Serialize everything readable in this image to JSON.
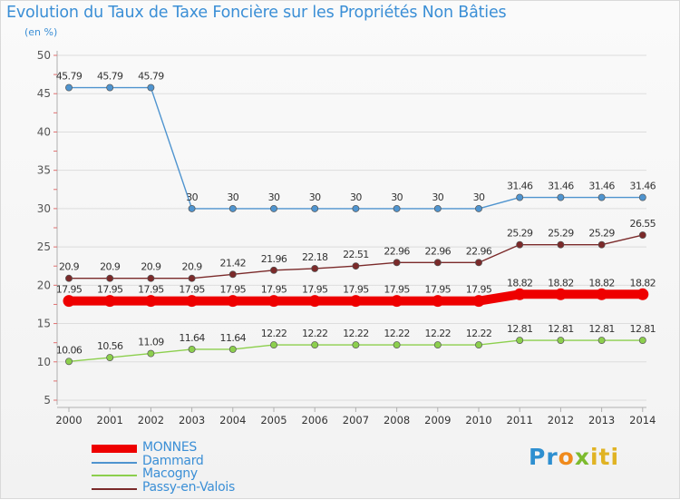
{
  "chart_data": {
    "type": "line",
    "title": "Evolution du Taux de Taxe Foncière sur les Propriétés Non Bâties",
    "unit_label": "(en %)",
    "xlabel": "",
    "ylabel": "",
    "ylim": [
      5,
      50
    ],
    "yticks": [
      5,
      10,
      15,
      20,
      25,
      30,
      35,
      40,
      45,
      50
    ],
    "categories": [
      "2000",
      "2001",
      "2002",
      "2003",
      "2004",
      "2005",
      "2006",
      "2007",
      "2008",
      "2009",
      "2010",
      "2011",
      "2012",
      "2013",
      "2014"
    ],
    "series": [
      {
        "name": "MONNES",
        "color": "#ee0000",
        "values": [
          17.95,
          17.95,
          17.95,
          17.95,
          17.95,
          17.95,
          17.95,
          17.95,
          17.95,
          17.95,
          17.95,
          18.82,
          18.82,
          18.82,
          18.82
        ],
        "labels": [
          "17.95",
          "17.95",
          "17.95",
          "17.95",
          "17.95",
          "17.95",
          "17.95",
          "17.95",
          "17.95",
          "17.95",
          "17.95",
          "18.82",
          "18.82",
          "18.82",
          "18.82"
        ]
      },
      {
        "name": "Dammard",
        "color": "#4f94cf",
        "values": [
          45.79,
          45.79,
          45.79,
          30,
          30,
          30,
          30,
          30,
          30,
          30,
          30,
          31.46,
          31.46,
          31.46,
          31.46
        ],
        "labels": [
          "45.79",
          "45.79",
          "45.79",
          "30",
          "30",
          "30",
          "30",
          "30",
          "30",
          "30",
          "30",
          "31.46",
          "31.46",
          "31.46",
          "31.46"
        ]
      },
      {
        "name": "Macogny",
        "color": "#8ccf4d",
        "values": [
          10.06,
          10.56,
          11.09,
          11.64,
          11.64,
          12.22,
          12.22,
          12.22,
          12.22,
          12.22,
          12.22,
          12.81,
          12.81,
          12.81,
          12.81
        ],
        "labels": [
          "10.06",
          "10.56",
          "11.09",
          "11.64",
          "11.64",
          "12.22",
          "12.22",
          "12.22",
          "12.22",
          "12.22",
          "12.22",
          "12.81",
          "12.81",
          "12.81",
          "12.81"
        ]
      },
      {
        "name": "Passy-en-Valois",
        "color": "#7b2a2a",
        "values": [
          20.9,
          20.9,
          20.9,
          20.9,
          21.42,
          21.96,
          22.18,
          22.51,
          22.96,
          22.96,
          22.96,
          25.29,
          25.29,
          25.29,
          26.55
        ],
        "labels": [
          "20.9",
          "20.9",
          "20.9",
          "20.9",
          "21.42",
          "21.96",
          "22.18",
          "22.51",
          "22.96",
          "22.96",
          "22.96",
          "25.29",
          "25.29",
          "25.29",
          "26.55"
        ]
      }
    ],
    "legend_position": "bottom-left"
  },
  "logo": {
    "parts": [
      "Pr",
      "o",
      "x",
      "iti"
    ]
  }
}
